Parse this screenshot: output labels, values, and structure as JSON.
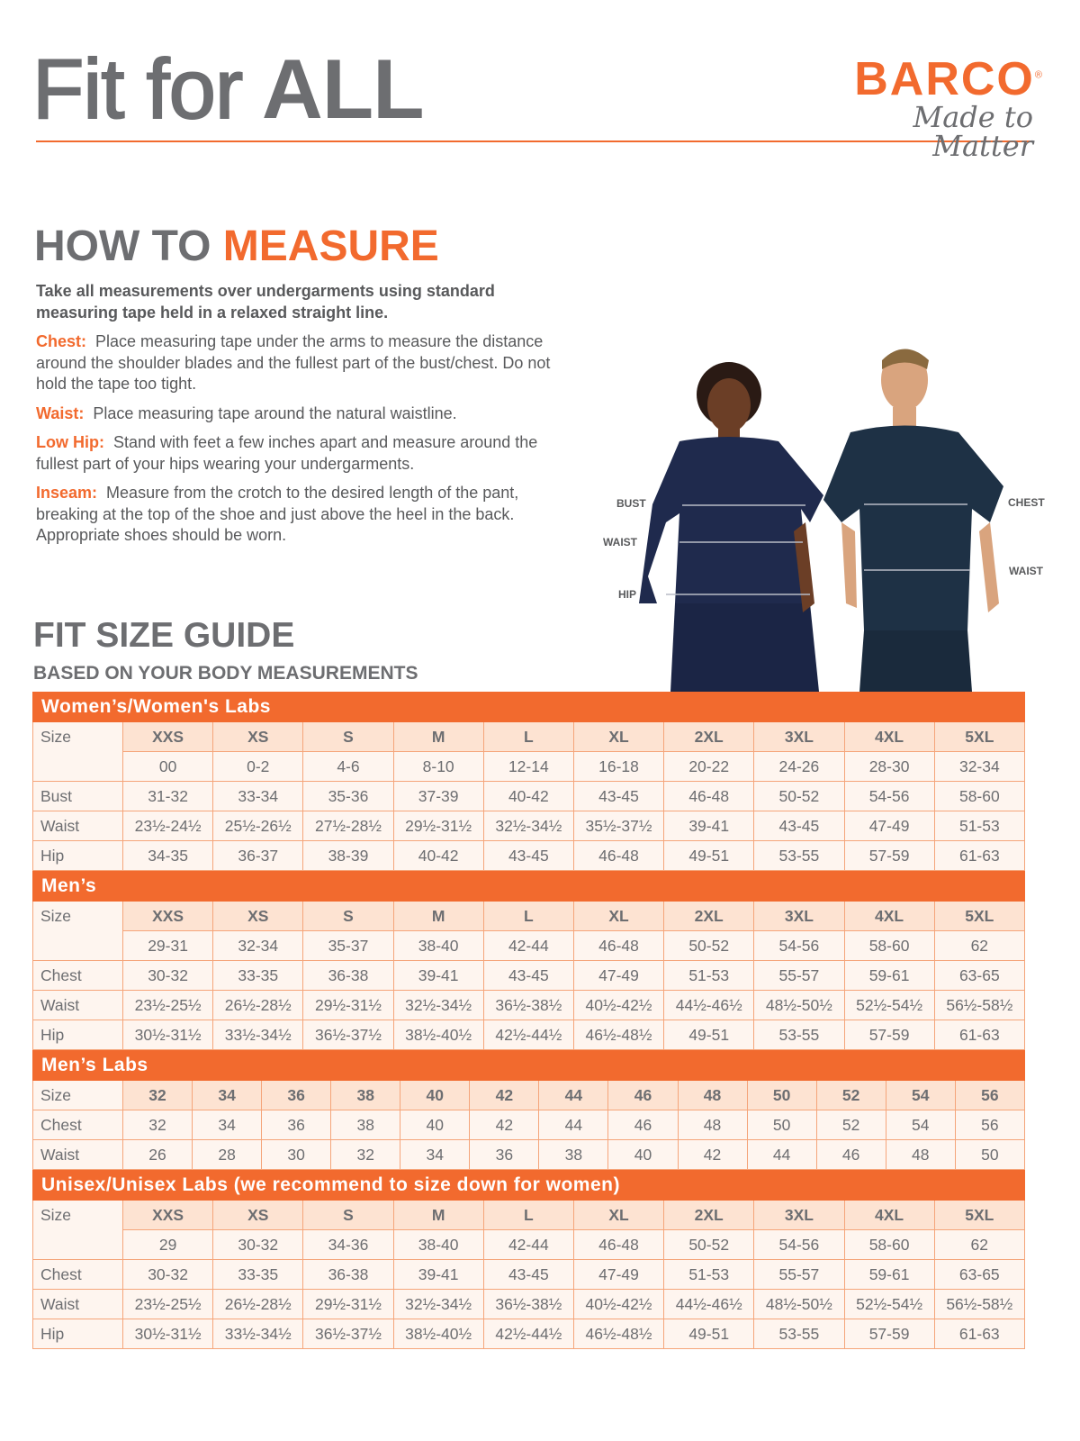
{
  "header": {
    "title_part1": "Fit for",
    "title_part2": "ALL",
    "brand": "BARCO",
    "brand_mark": "®",
    "tagline": "Made to Matter"
  },
  "how_to_measure": {
    "heading_part1": "HOW TO",
    "heading_part2": "MEASURE",
    "intro": "Take all measurements over undergarments using standard measuring tape held in a relaxed straight line.",
    "items": [
      {
        "label": "Chest:",
        "text": "Place measuring tape under the arms to measure the distance around the shoulder blades and the fullest part of the bust/chest. Do not hold the tape too tight."
      },
      {
        "label": "Waist:",
        "text": "Place measuring tape around the natural waistline."
      },
      {
        "label": "Low Hip:",
        "text": "Stand with feet a few inches apart and measure around the fullest part of your hips wearing your undergarments."
      },
      {
        "label": "Inseam:",
        "text": "Measure from the crotch to the desired length of the pant, breaking at the top of the shoe and just above the heel in the back. Appropriate shoes should be worn."
      }
    ]
  },
  "figure_labels": {
    "women": [
      "BUST",
      "WAIST",
      "HIP"
    ],
    "men": [
      "CHEST",
      "WAIST"
    ]
  },
  "fit_guide": {
    "heading": "FIT SIZE GUIDE",
    "subheading": "BASED ON YOUR BODY MEASUREMENTS",
    "sections": [
      {
        "title": "Women’s/Women's Labs",
        "size_label": "Size",
        "sizes": [
          "XXS",
          "XS",
          "S",
          "M",
          "L",
          "XL",
          "2XL",
          "3XL",
          "4XL",
          "5XL"
        ],
        "numeric": [
          "00",
          "0-2",
          "4-6",
          "8-10",
          "12-14",
          "16-18",
          "20-22",
          "24-26",
          "28-30",
          "32-34"
        ],
        "rows": [
          {
            "label": "Bust",
            "values": [
              "31-32",
              "33-34",
              "35-36",
              "37-39",
              "40-42",
              "43-45",
              "46-48",
              "50-52",
              "54-56",
              "58-60"
            ]
          },
          {
            "label": "Waist",
            "values": [
              "23½-24½",
              "25½-26½",
              "27½-28½",
              "29½-31½",
              "32½-34½",
              "35½-37½",
              "39-41",
              "43-45",
              "47-49",
              "51-53"
            ]
          },
          {
            "label": "Hip",
            "values": [
              "34-35",
              "36-37",
              "38-39",
              "40-42",
              "43-45",
              "46-48",
              "49-51",
              "53-55",
              "57-59",
              "61-63"
            ]
          }
        ]
      },
      {
        "title": "Men’s",
        "size_label": "Size",
        "sizes": [
          "XXS",
          "XS",
          "S",
          "M",
          "L",
          "XL",
          "2XL",
          "3XL",
          "4XL",
          "5XL"
        ],
        "numeric": [
          "29-31",
          "32-34",
          "35-37",
          "38-40",
          "42-44",
          "46-48",
          "50-52",
          "54-56",
          "58-60",
          "62"
        ],
        "rows": [
          {
            "label": "Chest",
            "values": [
              "30-32",
              "33-35",
              "36-38",
              "39-41",
              "43-45",
              "47-49",
              "51-53",
              "55-57",
              "59-61",
              "63-65"
            ]
          },
          {
            "label": "Waist",
            "values": [
              "23½-25½",
              "26½-28½",
              "29½-31½",
              "32½-34½",
              "36½-38½",
              "40½-42½",
              "44½-46½",
              "48½-50½",
              "52½-54½",
              "56½-58½"
            ]
          },
          {
            "label": "Hip",
            "values": [
              "30½-31½",
              "33½-34½",
              "36½-37½",
              "38½-40½",
              "42½-44½",
              "46½-48½",
              "49-51",
              "53-55",
              "57-59",
              "61-63"
            ]
          }
        ]
      },
      {
        "title": "Men’s Labs",
        "size_label": "Size",
        "sizes": [
          "32",
          "34",
          "36",
          "38",
          "40",
          "42",
          "44",
          "46",
          "48",
          "50",
          "52",
          "54",
          "56"
        ],
        "rows": [
          {
            "label": "Chest",
            "values": [
              "32",
              "34",
              "36",
              "38",
              "40",
              "42",
              "44",
              "46",
              "48",
              "50",
              "52",
              "54",
              "56"
            ]
          },
          {
            "label": "Waist",
            "values": [
              "26",
              "28",
              "30",
              "32",
              "34",
              "36",
              "38",
              "40",
              "42",
              "44",
              "46",
              "48",
              "50"
            ]
          }
        ]
      },
      {
        "title": "Unisex/Unisex Labs (we recommend to size down for women)",
        "size_label": "Size",
        "sizes": [
          "XXS",
          "XS",
          "S",
          "M",
          "L",
          "XL",
          "2XL",
          "3XL",
          "4XL",
          "5XL"
        ],
        "numeric": [
          "29",
          "30-32",
          "34-36",
          "38-40",
          "42-44",
          "46-48",
          "50-52",
          "54-56",
          "58-60",
          "62"
        ],
        "rows": [
          {
            "label": "Chest",
            "values": [
              "30-32",
              "33-35",
              "36-38",
              "39-41",
              "43-45",
              "47-49",
              "51-53",
              "55-57",
              "59-61",
              "63-65"
            ]
          },
          {
            "label": "Waist",
            "values": [
              "23½-25½",
              "26½-28½",
              "29½-31½",
              "32½-34½",
              "36½-38½",
              "40½-42½",
              "44½-46½",
              "48½-50½",
              "52½-54½",
              "56½-58½"
            ]
          },
          {
            "label": "Hip",
            "values": [
              "30½-31½",
              "33½-34½",
              "36½-37½",
              "38½-40½",
              "42½-44½",
              "46½-48½",
              "49-51",
              "53-55",
              "57-59",
              "61-63"
            ]
          }
        ]
      }
    ]
  },
  "colors": {
    "accent": "#f26a2e",
    "text": "#6d6e71",
    "size_header_bg": "#fde3d2",
    "cell_bg": "#fef5ef",
    "border": "#f5a57a",
    "scrubs": "#1f2a4d"
  }
}
